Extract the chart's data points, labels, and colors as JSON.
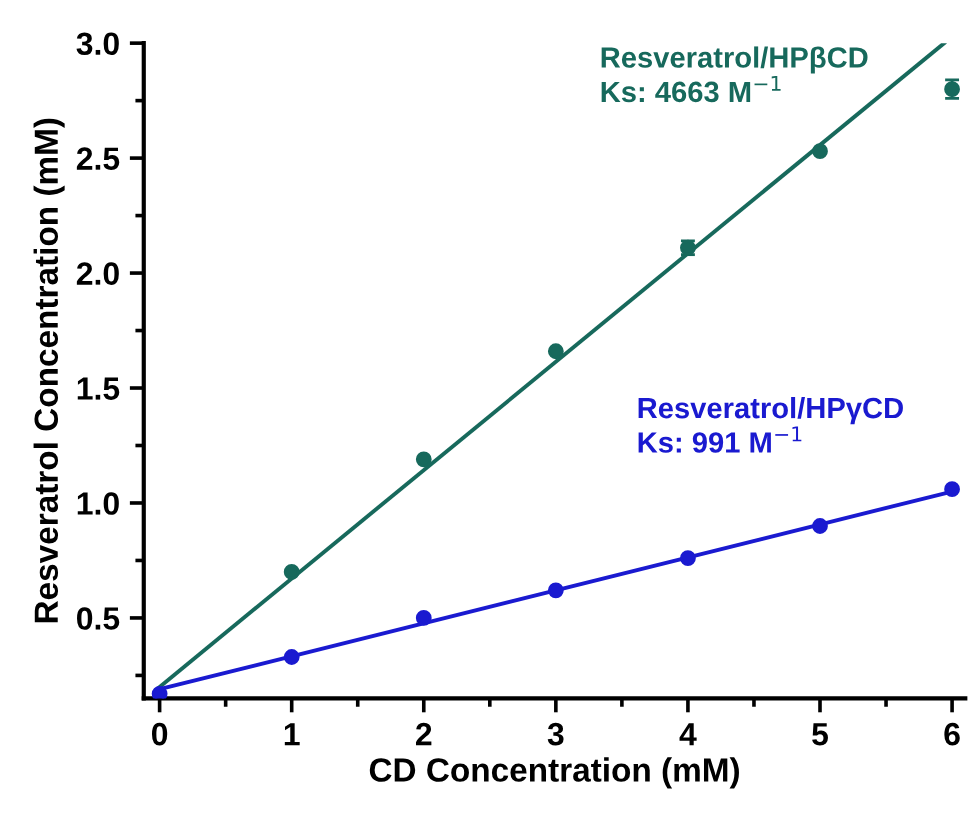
{
  "chart_data": {
    "type": "scatter",
    "xlabel": "CD Concentration (mM)",
    "ylabel": "Resveratrol Concentration (mM)",
    "xlim": [
      -0.12,
      6.1
    ],
    "ylim": [
      0.15,
      3.0
    ],
    "xticks": [
      0,
      1,
      2,
      3,
      4,
      5,
      6
    ],
    "yticks": [
      0.5,
      {
        "value": 1.0,
        "label": "1.0"
      },
      1.5,
      {
        "value": 2.0,
        "label": "2.0"
      },
      2.5,
      {
        "value": 3.0,
        "label": "3.0"
      }
    ],
    "grid": false,
    "legend": false,
    "series": [
      {
        "color": "#17695c",
        "marker": "circle",
        "x": [
          1,
          2,
          3,
          4,
          5,
          6
        ],
        "values": [
          0.7,
          1.19,
          1.66,
          2.11,
          2.53,
          2.8
        ],
        "errors": [
          null,
          null,
          null,
          0.03,
          null,
          0.04
        ]
      },
      {
        "type": "line",
        "color": "#17695c",
        "x": [
          0,
          5.94
        ],
        "values": [
          0.2,
          3.0
        ]
      },
      {
        "color": "#1a1ad0",
        "marker": "circle",
        "x": [
          0,
          1,
          2,
          3,
          4,
          5,
          6
        ],
        "values": [
          0.17,
          0.33,
          0.5,
          0.62,
          0.76,
          0.9,
          1.06
        ]
      },
      {
        "type": "line",
        "color": "#1a1ad0",
        "x": [
          0,
          6
        ],
        "values": [
          0.19,
          1.05
        ]
      }
    ],
    "annotations": [
      "Resveratrol/HPβCD\nKs: 4663 M$^{−1}$",
      "Resveratrol/HPγCD\nKs: 991 M$^{−1}$"
    ]
  }
}
